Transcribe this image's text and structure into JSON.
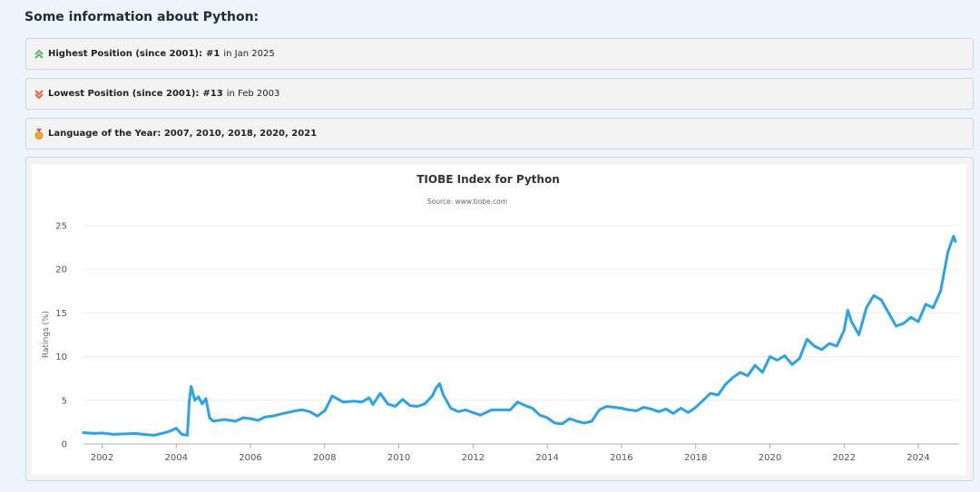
{
  "heading": "Some information about Python:",
  "info": {
    "highest": {
      "label": "Highest Position (since 2001):",
      "value": "#1",
      "suffix": "in Jan 2025",
      "icon": "double-chevron-up-icon"
    },
    "lowest": {
      "label": "Lowest Position (since 2001):",
      "value": "#13",
      "suffix": "in Feb 2003",
      "icon": "double-chevron-down-icon"
    },
    "loty": {
      "label": "Language of the Year: 2007, 2010, 2018, 2020, 2021",
      "icon": "medal-icon"
    }
  },
  "colors": {
    "line": "#2aa3ea",
    "up": "#5cb85c",
    "down": "#e8613c",
    "medal": "#f0a830"
  },
  "chart_data": {
    "type": "line",
    "title": "TIOBE Index for Python",
    "subtitle": "Source: www.tiobe.com",
    "ylabel": "Ratings (%)",
    "xlabel": "",
    "xlim": [
      2001.5,
      2025.1
    ],
    "ylim": [
      0,
      25
    ],
    "yticks": [
      0,
      5,
      10,
      15,
      20,
      25
    ],
    "xticks": [
      2002,
      2004,
      2006,
      2008,
      2010,
      2012,
      2014,
      2016,
      2018,
      2020,
      2022,
      2024
    ],
    "grid": "horizontal",
    "legend": "none",
    "series": [
      {
        "x": [
          2001.5,
          2001.8,
          2002.0,
          2002.3,
          2002.6,
          2002.9,
          2003.1,
          2003.4,
          2003.7,
          2003.85,
          2004.0,
          2004.15,
          2004.3,
          2004.35,
          2004.4,
          2004.5,
          2004.6,
          2004.7,
          2004.8,
          2004.9,
          2004.95,
          2005.0,
          2005.3,
          2005.6,
          2005.8,
          2006.0,
          2006.2,
          2006.4,
          2006.6,
          2006.8,
          2007.0,
          2007.2,
          2007.4,
          2007.6,
          2007.8,
          2008.0,
          2008.1,
          2008.2,
          2008.5,
          2008.8,
          2009.0,
          2009.2,
          2009.3,
          2009.5,
          2009.7,
          2009.9,
          2010.1,
          2010.3,
          2010.5,
          2010.7,
          2010.9,
          2011.0,
          2011.1,
          2011.2,
          2011.4,
          2011.6,
          2011.8,
          2012.0,
          2012.2,
          2012.5,
          2012.8,
          2013.0,
          2013.2,
          2013.4,
          2013.6,
          2013.8,
          2014.0,
          2014.2,
          2014.4,
          2014.6,
          2014.8,
          2015.0,
          2015.2,
          2015.4,
          2015.6,
          2015.8,
          2016.0,
          2016.2,
          2016.4,
          2016.6,
          2016.8,
          2017.0,
          2017.2,
          2017.4,
          2017.6,
          2017.8,
          2018.0,
          2018.2,
          2018.4,
          2018.6,
          2018.8,
          2019.0,
          2019.2,
          2019.4,
          2019.6,
          2019.8,
          2020.0,
          2020.2,
          2020.4,
          2020.6,
          2020.8,
          2021.0,
          2021.2,
          2021.4,
          2021.6,
          2021.8,
          2022.0,
          2022.1,
          2022.2,
          2022.4,
          2022.6,
          2022.8,
          2023.0,
          2023.2,
          2023.4,
          2023.6,
          2023.8,
          2024.0,
          2024.2,
          2024.4,
          2024.6,
          2024.8,
          2024.95,
          2025.0
        ],
        "y": [
          1.3,
          1.2,
          1.25,
          1.1,
          1.15,
          1.2,
          1.1,
          1.0,
          1.3,
          1.5,
          1.8,
          1.1,
          1.0,
          4.8,
          6.6,
          5.0,
          5.4,
          4.6,
          5.2,
          3.0,
          2.8,
          2.6,
          2.8,
          2.6,
          3.0,
          2.9,
          2.7,
          3.1,
          3.2,
          3.4,
          3.6,
          3.8,
          3.9,
          3.7,
          3.2,
          3.8,
          4.6,
          5.5,
          4.8,
          4.9,
          4.8,
          5.3,
          4.5,
          5.8,
          4.6,
          4.3,
          5.1,
          4.4,
          4.3,
          4.6,
          5.5,
          6.4,
          6.9,
          5.6,
          4.1,
          3.7,
          3.9,
          3.6,
          3.3,
          3.9,
          3.9,
          3.9,
          4.8,
          4.4,
          4.1,
          3.3,
          3.0,
          2.4,
          2.3,
          2.9,
          2.6,
          2.4,
          2.6,
          3.9,
          4.3,
          4.2,
          4.1,
          3.9,
          3.8,
          4.2,
          4.0,
          3.7,
          4.0,
          3.5,
          4.1,
          3.6,
          4.2,
          5.0,
          5.8,
          5.6,
          6.8,
          7.6,
          8.2,
          7.8,
          9.0,
          8.2,
          10.0,
          9.6,
          10.1,
          9.1,
          9.8,
          12.0,
          11.2,
          10.8,
          11.5,
          11.2,
          13.0,
          15.3,
          14.0,
          12.5,
          15.6,
          17.0,
          16.5,
          15.0,
          13.5,
          13.8,
          14.5,
          14.0,
          16.0,
          15.6,
          17.5,
          22.0,
          23.8,
          23.2
        ]
      }
    ]
  }
}
